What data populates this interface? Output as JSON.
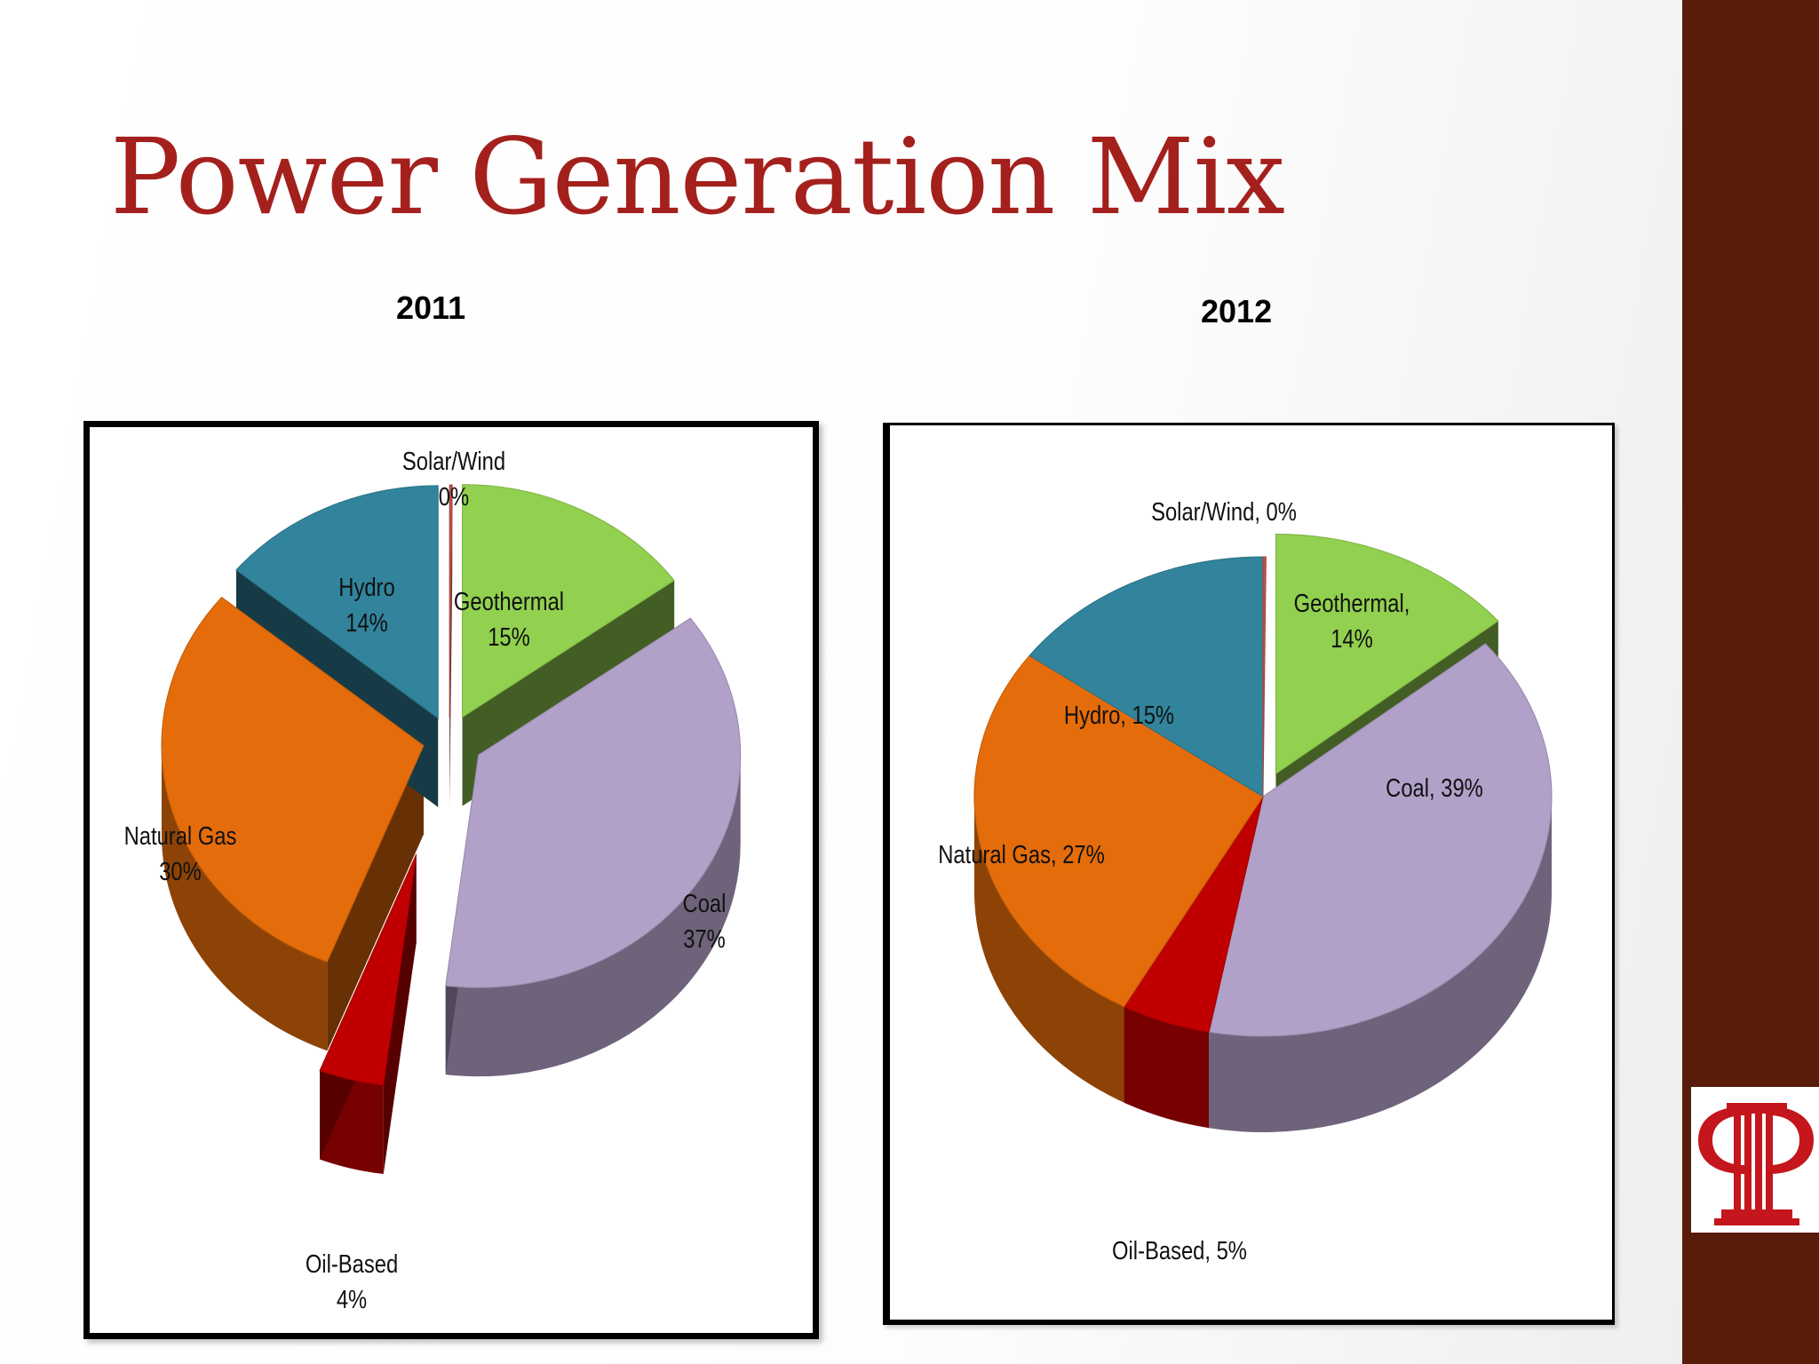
{
  "slide": {
    "title": "Power Generation Mix",
    "colors": {
      "title": "#a4201d",
      "side_bar": "#5a1c0a"
    }
  },
  "chart_data": [
    {
      "type": "pie",
      "title": "2011",
      "exploded": true,
      "slices": [
        {
          "label": "Geothermal",
          "pct_text": "15%",
          "value": 15,
          "color": "#92d050"
        },
        {
          "label": "Coal",
          "pct_text": "37%",
          "value": 37,
          "color": "#b1a0c7"
        },
        {
          "label": "Oil-Based",
          "pct_text": "4%",
          "value": 4,
          "color": "#c00000"
        },
        {
          "label": "Natural Gas",
          "pct_text": "30%",
          "value": 30,
          "color": "#e46c0a"
        },
        {
          "label": "Hydro",
          "pct_text": "14%",
          "value": 14,
          "color": "#31849b"
        },
        {
          "label": "Solar/Wind",
          "pct_text": "0%",
          "value": 0,
          "color": "#c0504d"
        }
      ]
    },
    {
      "type": "pie",
      "title": "2012",
      "exploded": false,
      "slices": [
        {
          "label": "Geothermal",
          "pct_text": "14%",
          "value": 14,
          "color": "#92d050"
        },
        {
          "label": "Coal",
          "pct_text": "39%",
          "value": 39,
          "color": "#b1a0c7"
        },
        {
          "label": "Oil-Based",
          "pct_text": "5%",
          "value": 5,
          "color": "#c00000"
        },
        {
          "label": "Natural Gas",
          "pct_text": "27%",
          "value": 27,
          "color": "#e46c0a"
        },
        {
          "label": "Hydro",
          "pct_text": "15%",
          "value": 15,
          "color": "#31849b"
        },
        {
          "label": "Solar/Wind",
          "pct_text": "0%",
          "value": 0,
          "color": "#c0504d"
        }
      ]
    }
  ]
}
